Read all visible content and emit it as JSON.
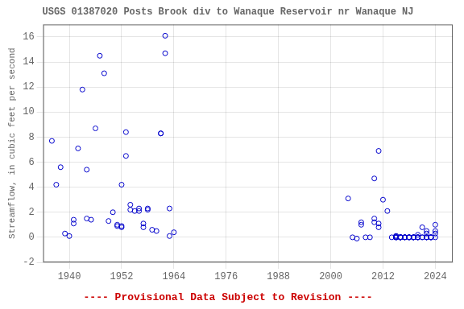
{
  "chart_data": {
    "type": "scatter",
    "title": "USGS 01387020 Posts Brook div to Wanaque Reservoir nr Wanaque NJ",
    "ylabel": "Streamflow, in cubic feet per second",
    "annotation": {
      "text": "---- Provisional Data Subject to Revision ----",
      "color": "#cc0000"
    },
    "x": [
      1936,
      1937,
      1938,
      1939,
      1940,
      1941,
      1941,
      1942,
      1943,
      1944,
      1944,
      1945,
      1946,
      1947,
      1948,
      1949,
      1950,
      1951,
      1951,
      1952,
      1952,
      1952,
      1953,
      1953,
      1954,
      1954,
      1955,
      1956,
      1956,
      1957,
      1957,
      1958,
      1958,
      1959,
      1960,
      1961,
      1961,
      1962,
      1962,
      1963,
      1963,
      1964,
      2004,
      2005,
      2006,
      2007,
      2007,
      2008,
      2009,
      2010,
      2010,
      2010,
      2011,
      2011,
      2011,
      2012,
      2013,
      2014,
      2015,
      2015,
      2015,
      2015,
      2015,
      2015,
      2015,
      2015,
      2015,
      2016,
      2016,
      2016,
      2016,
      2016,
      2016,
      2016,
      2016,
      2016,
      2016,
      2017,
      2017,
      2017,
      2017,
      2017,
      2017,
      2018,
      2018,
      2018,
      2018,
      2018,
      2019,
      2019,
      2019,
      2019,
      2019,
      2019,
      2019,
      2020,
      2020,
      2020,
      2020,
      2020,
      2020,
      2021,
      2021,
      2021,
      2022,
      2022,
      2022,
      2022,
      2022,
      2022,
      2022,
      2023,
      2023,
      2023,
      2023,
      2023,
      2024,
      2024,
      2024,
      2024
    ],
    "values": [
      7.7,
      4.2,
      5.6,
      0.3,
      0.1,
      1.1,
      1.4,
      7.1,
      11.8,
      1.5,
      5.4,
      1.4,
      8.7,
      14.5,
      13.1,
      1.3,
      2.0,
      1.0,
      0.9,
      4.2,
      0.9,
      0.8,
      8.4,
      6.5,
      2.6,
      2.2,
      2.1,
      2.1,
      2.3,
      0.8,
      1.1,
      2.3,
      2.2,
      0.6,
      0.5,
      8.3,
      8.3,
      16.1,
      14.7,
      2.3,
      0.1,
      0.4,
      3.1,
      0.0,
      -0.1,
      1.2,
      1.0,
      0.0,
      0.0,
      4.7,
      1.5,
      1.2,
      6.9,
      0.8,
      1.1,
      3.0,
      2.1,
      0.0,
      0.0,
      0.0,
      0.0,
      0.0,
      0.1,
      0.1,
      0.0,
      0.0,
      0.0,
      0.0,
      0.0,
      0.0,
      0.0,
      0.0,
      0.0,
      0.0,
      0.0,
      0.0,
      0.0,
      0.0,
      0.0,
      0.0,
      0.0,
      0.0,
      0.0,
      0.0,
      0.0,
      0.0,
      0.0,
      0.0,
      0.0,
      0.0,
      0.0,
      0.0,
      0.0,
      0.0,
      0.0,
      0.0,
      0.0,
      0.0,
      0.2,
      0.0,
      0.0,
      0.0,
      0.8,
      0.0,
      0.3,
      0.5,
      0.0,
      0.0,
      0.0,
      0.0,
      0.0,
      0.0,
      0.0,
      0.0,
      0.0,
      0.0,
      1.0,
      0.5,
      0.3,
      0.0
    ],
    "color": "#0000CC",
    "marker": "open circle",
    "xlim": [
      1934,
      2028
    ],
    "ylim": [
      -2,
      17
    ],
    "xticks": [
      1940,
      1952,
      1964,
      1976,
      1988,
      2000,
      2012,
      2024
    ],
    "yticks": [
      -2,
      0,
      2,
      4,
      6,
      8,
      10,
      12,
      14,
      16
    ],
    "grid": true
  }
}
